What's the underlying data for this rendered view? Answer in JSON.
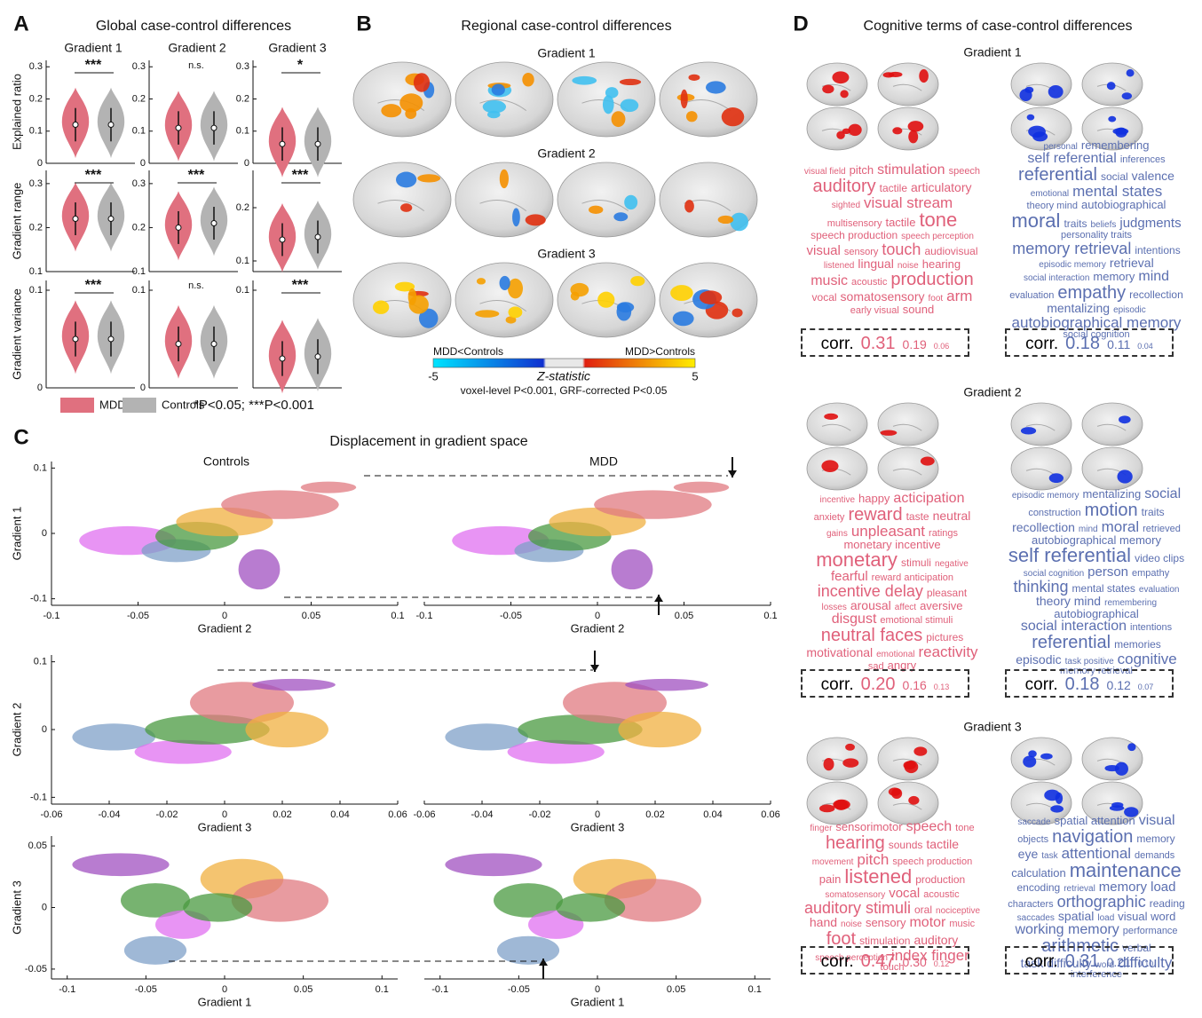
{
  "panel_a": {
    "label": "A",
    "title": "Global case-control differences",
    "columns": [
      "Gradient 1",
      "Gradient 2",
      "Gradient 3"
    ],
    "groups": [
      {
        "name": "MDD",
        "color": "#e0707f"
      },
      {
        "name": "Controls",
        "color": "#b3b3b3"
      }
    ],
    "note": "*P<0.05; ***P<0.001",
    "rows": [
      {
        "y_label": "Explained ratio",
        "plots": [
          {
            "ylim": [
              0,
              0.32
            ],
            "yticks": [
              0,
              0.1,
              0.2,
              0.3
            ],
            "values": [
              0.12,
              0.12
            ],
            "significance": "***"
          },
          {
            "ylim": [
              0,
              0.32
            ],
            "yticks": [
              0,
              0.1,
              0.2,
              0.3
            ],
            "values": [
              0.11,
              0.11
            ],
            "significance": "n.s."
          },
          {
            "ylim": [
              0,
              0.32
            ],
            "yticks": [
              0,
              0.1,
              0.2,
              0.3
            ],
            "values": [
              0.06,
              0.06
            ],
            "significance": "*"
          }
        ]
      },
      {
        "y_label": "Gradient range",
        "plots": [
          {
            "ylim": [
              0.1,
              0.33
            ],
            "yticks": [
              0.1,
              0.2,
              0.3
            ],
            "values": [
              0.22,
              0.22
            ],
            "significance": "***"
          },
          {
            "ylim": [
              0.1,
              0.33
            ],
            "yticks": [
              0.1,
              0.2,
              0.3
            ],
            "values": [
              0.2,
              0.21
            ],
            "significance": "***"
          },
          {
            "ylim": [
              0.08,
              0.27
            ],
            "yticks": [
              0.1,
              0.2
            ],
            "values": [
              0.14,
              0.145
            ],
            "significance": "***"
          }
        ]
      },
      {
        "y_label": "Gradient variance",
        "plots": [
          {
            "ylim": [
              0,
              0.11
            ],
            "yticks": [
              0,
              0.1
            ],
            "values": [
              0.05,
              0.05
            ],
            "significance": "***"
          },
          {
            "ylim": [
              0,
              0.11
            ],
            "yticks": [
              0,
              0.1
            ],
            "values": [
              0.045,
              0.045
            ],
            "significance": "n.s."
          },
          {
            "ylim": [
              0,
              0.11
            ],
            "yticks": [
              0.1
            ],
            "values": [
              0.03,
              0.032
            ],
            "significance": "***"
          }
        ]
      }
    ]
  },
  "panel_b": {
    "label": "B",
    "title": "Regional case-control differences",
    "gradients": [
      "Gradient 1",
      "Gradient 2",
      "Gradient 3"
    ],
    "colorbar": {
      "left_label": "MDD<Controls",
      "right_label": "MDD>Controls",
      "min": -5,
      "max": 5,
      "caption": "Z-statistic",
      "note": "voxel-level P<0.001, GRF-corrected P<0.05"
    }
  },
  "panel_c": {
    "label": "C",
    "title": "Displacement in gradient space",
    "groups": [
      "Controls",
      "MDD"
    ],
    "rows": [
      {
        "x_label": "Gradient 2",
        "y_label": "Gradient 1",
        "xlim": [
          -0.1,
          0.1
        ],
        "xticks": [
          -0.1,
          -0.05,
          0,
          0.05,
          0.1
        ],
        "ylim": [
          -0.11,
          0.11
        ],
        "yticks": [
          -0.1,
          0,
          0.1
        ]
      },
      {
        "x_label": "Gradient 3",
        "y_label": "Gradient 2",
        "xlim": [
          -0.06,
          0.06
        ],
        "xticks": [
          -0.06,
          -0.04,
          -0.02,
          0,
          0.02,
          0.04,
          0.06
        ],
        "ylim": [
          -0.11,
          0.11
        ],
        "yticks": [
          -0.1,
          0,
          0.1
        ]
      },
      {
        "x_label": "Gradient 1",
        "y_label": "Gradient 3",
        "xlim": [
          -0.11,
          0.11
        ],
        "xticks": [
          -0.1,
          -0.05,
          0,
          0.05,
          0.1
        ],
        "ylim": [
          -0.058,
          0.058
        ],
        "yticks": [
          -0.05,
          0,
          0.05
        ]
      }
    ]
  },
  "panel_d": {
    "label": "D",
    "title": "Cognitive terms of case-control differences",
    "corr_label": "corr.",
    "gradients": [
      {
        "name": "Gradient 1",
        "clouds": [
          {
            "color": "#e0607a",
            "corr": [
              "0.31",
              "0.19",
              "0.06"
            ],
            "words": [
              "visual field",
              "pitch",
              "stimulation",
              "speech",
              "auditory",
              "tactile",
              "articulatory",
              "sighted",
              "visual stream",
              "multisensory",
              "tactile",
              "tone",
              "speech production",
              "speech perception",
              "visual",
              "sensory",
              "touch",
              "audiovisual",
              "listened",
              "lingual",
              "noise",
              "hearing",
              "music",
              "acoustic",
              "production",
              "vocal",
              "somatosensory",
              "foot",
              "arm",
              "early visual",
              "sound"
            ]
          },
          {
            "color": "#5b6fb0",
            "corr": [
              "0.18",
              "0.11",
              "0.04"
            ],
            "words": [
              "personal",
              "remembering",
              "self referential",
              "inferences",
              "referential",
              "social",
              "valence",
              "emotional",
              "mental states",
              "theory mind",
              "autobiographical",
              "moral",
              "traits",
              "beliefs",
              "judgments",
              "personality traits",
              "memory retrieval",
              "intentions",
              "episodic memory",
              "retrieval",
              "social interaction",
              "memory",
              "mind",
              "evaluation",
              "empathy",
              "recollection",
              "mentalizing",
              "episodic",
              "autobiographical memory",
              "social cognition"
            ]
          }
        ]
      },
      {
        "name": "Gradient 2",
        "clouds": [
          {
            "color": "#e0607a",
            "corr": [
              "0.20",
              "0.16",
              "0.13"
            ],
            "words": [
              "incentive",
              "happy",
              "acticipation",
              "anxiety",
              "reward",
              "taste",
              "neutral",
              "gains",
              "unpleasant",
              "ratings",
              "monetary incentive",
              "monetary",
              "stimuli",
              "negative",
              "fearful",
              "reward anticipation",
              "incentive delay",
              "pleasant",
              "losses",
              "arousal",
              "affect",
              "aversive",
              "disgust",
              "emotional stimuli",
              "neutral faces",
              "pictures",
              "motivational",
              "emotional",
              "reactivity",
              "sad",
              "angry"
            ]
          },
          {
            "color": "#5b6fb0",
            "corr": [
              "0.18",
              "0.12",
              "0.07"
            ],
            "words": [
              "episodic memory",
              "mentalizing",
              "social",
              "construction",
              "motion",
              "traits",
              "recollection",
              "mind",
              "moral",
              "retrieved",
              "autobiographical memory",
              "self referential",
              "video clips",
              "social cognition",
              "person",
              "empathy",
              "thinking",
              "mental states",
              "evaluation",
              "theory mind",
              "remembering",
              "autobiographical",
              "social interaction",
              "intentions",
              "referential",
              "memories",
              "episodic",
              "task positive",
              "cognitive",
              "memory retrieval"
            ]
          }
        ]
      },
      {
        "name": "Gradient 3",
        "clouds": [
          {
            "color": "#e0607a",
            "corr": [
              "0.47",
              "0.30",
              "0.12"
            ],
            "words": [
              "finger",
              "sensorimotor",
              "speech",
              "tone",
              "hearing",
              "sounds",
              "tactile",
              "movement",
              "pitch",
              "speech production",
              "pain",
              "listened",
              "production",
              "somatosensory",
              "vocal",
              "acoustic",
              "auditory stimuli",
              "oral",
              "nociceptive",
              "hand",
              "noise",
              "sensory",
              "motor",
              "music",
              "foot",
              "stimulation",
              "auditory",
              "speech perception",
              "index finger",
              "touch"
            ]
          },
          {
            "color": "#5b6fb0",
            "corr": [
              "0.31",
              "0.21",
              "0.10"
            ],
            "words": [
              "saccade",
              "spatial attention",
              "visual",
              "objects",
              "navigation",
              "memory",
              "eye",
              "task",
              "attentional",
              "demands",
              "calculation",
              "maintenance",
              "encoding",
              "retrieval",
              "memory load",
              "characters",
              "orthographic",
              "reading",
              "saccades",
              "spatial",
              "load",
              "visual word",
              "working memory",
              "performance",
              "arithmetic",
              "verbal",
              "task difficulty",
              "word",
              "difficulty",
              "interference"
            ]
          }
        ]
      }
    ]
  }
}
